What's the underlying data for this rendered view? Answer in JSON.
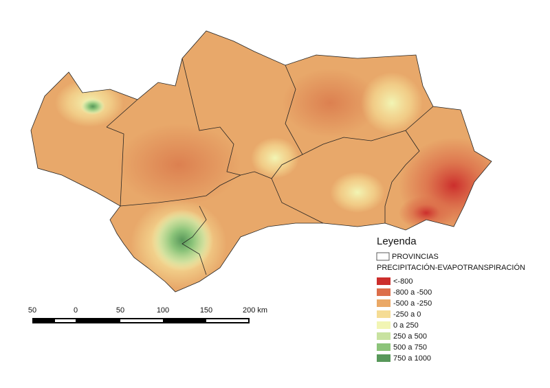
{
  "legend": {
    "title": "Leyenda",
    "provinces": "PROVINCIAS",
    "subtitle": "PRECIPITACIÓN-EVAPOTRANSPIRACIÓN",
    "items": [
      {
        "label": "<-800",
        "color": "#cc2e2c"
      },
      {
        "label": "-800 a -500",
        "color": "#dc6e4a"
      },
      {
        "label": "-500 a -250",
        "color": "#eaa866"
      },
      {
        "label": "-250 a 0",
        "color": "#f5dc94"
      },
      {
        "label": "0 a 250",
        "color": "#f2f5b4"
      },
      {
        "label": "250 a 500",
        "color": "#c8e2a0"
      },
      {
        "label": "500 a 750",
        "color": "#8cc47a"
      },
      {
        "label": "750 a 1000",
        "color": "#58985a"
      }
    ]
  },
  "scale_bar": {
    "labels": [
      "50",
      "0",
      "50",
      "100",
      "150",
      "200 km"
    ]
  }
}
